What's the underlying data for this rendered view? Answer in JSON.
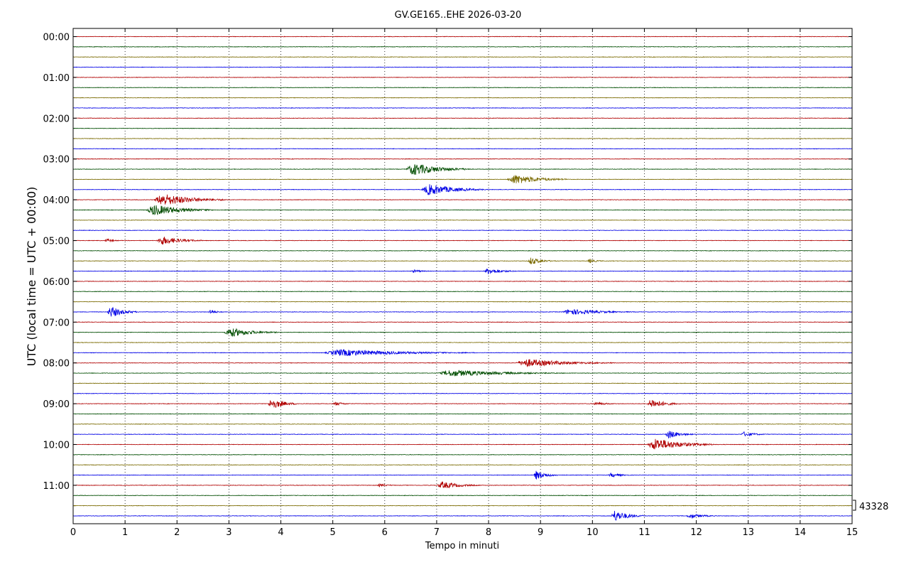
{
  "chart_data": {
    "type": "line",
    "title": "GV.GE165..EHE 2026-03-20",
    "xlabel": "Tempo in minuti",
    "ylabel": "UTC (local time = UTC + 00:00)",
    "xlim": [
      0,
      15
    ],
    "x_ticks": [
      "0",
      "1",
      "2",
      "3",
      "4",
      "5",
      "6",
      "7",
      "8",
      "9",
      "10",
      "11",
      "12",
      "13",
      "14",
      "15"
    ],
    "y_ticks": [
      "00:00",
      "01:00",
      "02:00",
      "03:00",
      "04:00",
      "05:00",
      "06:00",
      "07:00",
      "08:00",
      "09:00",
      "10:00",
      "11:00"
    ],
    "grid": "vertical dotted at each minute",
    "trace_row_minutes": 15,
    "row_count": 48,
    "trace_colors": [
      "#b00000",
      "#004d00",
      "#7a6a00",
      "#0000e6"
    ],
    "scale_label": "43328",
    "events": [
      {
        "row": 13,
        "start": 6.4,
        "end": 7.65,
        "amp": 1.0
      },
      {
        "row": 14,
        "start": 8.35,
        "end": 9.55,
        "amp": 0.8
      },
      {
        "row": 15,
        "start": 6.7,
        "end": 7.95,
        "amp": 0.9
      },
      {
        "row": 16,
        "start": 1.55,
        "end": 2.95,
        "amp": 1.0
      },
      {
        "row": 17,
        "start": 1.4,
        "end": 2.7,
        "amp": 0.9
      },
      {
        "row": 20,
        "start": 0.6,
        "end": 0.95,
        "amp": 0.3
      },
      {
        "row": 20,
        "start": 1.6,
        "end": 2.5,
        "amp": 0.7
      },
      {
        "row": 22,
        "start": 8.75,
        "end": 9.3,
        "amp": 0.6
      },
      {
        "row": 22,
        "start": 9.9,
        "end": 10.25,
        "amp": 0.35
      },
      {
        "row": 23,
        "start": 6.5,
        "end": 6.95,
        "amp": 0.25
      },
      {
        "row": 23,
        "start": 7.9,
        "end": 8.6,
        "amp": 0.5
      },
      {
        "row": 27,
        "start": 0.65,
        "end": 1.25,
        "amp": 0.9
      },
      {
        "row": 27,
        "start": 2.6,
        "end": 2.95,
        "amp": 0.35
      },
      {
        "row": 27,
        "start": 9.4,
        "end": 10.8,
        "amp": 0.5
      },
      {
        "row": 29,
        "start": 2.9,
        "end": 3.95,
        "amp": 0.75
      },
      {
        "row": 31,
        "start": 4.8,
        "end": 7.75,
        "amp": 0.55
      },
      {
        "row": 32,
        "start": 8.5,
        "end": 10.4,
        "amp": 0.65
      },
      {
        "row": 33,
        "start": 7.0,
        "end": 9.45,
        "amp": 0.55
      },
      {
        "row": 36,
        "start": 3.75,
        "end": 4.35,
        "amp": 0.9
      },
      {
        "row": 36,
        "start": 5.0,
        "end": 5.45,
        "amp": 0.3
      },
      {
        "row": 36,
        "start": 10.0,
        "end": 10.55,
        "amp": 0.3
      },
      {
        "row": 36,
        "start": 11.05,
        "end": 11.7,
        "amp": 0.8
      },
      {
        "row": 39,
        "start": 11.4,
        "end": 11.95,
        "amp": 0.7
      },
      {
        "row": 39,
        "start": 12.85,
        "end": 13.4,
        "amp": 0.4
      },
      {
        "row": 40,
        "start": 11.05,
        "end": 12.35,
        "amp": 1.0
      },
      {
        "row": 43,
        "start": 8.85,
        "end": 9.4,
        "amp": 0.7
      },
      {
        "row": 43,
        "start": 10.3,
        "end": 10.8,
        "amp": 0.35
      },
      {
        "row": 44,
        "start": 5.85,
        "end": 6.3,
        "amp": 0.25
      },
      {
        "row": 44,
        "start": 7.0,
        "end": 7.85,
        "amp": 0.6
      },
      {
        "row": 47,
        "start": 10.35,
        "end": 11.0,
        "amp": 0.9
      },
      {
        "row": 47,
        "start": 11.8,
        "end": 12.45,
        "amp": 0.4
      }
    ]
  }
}
